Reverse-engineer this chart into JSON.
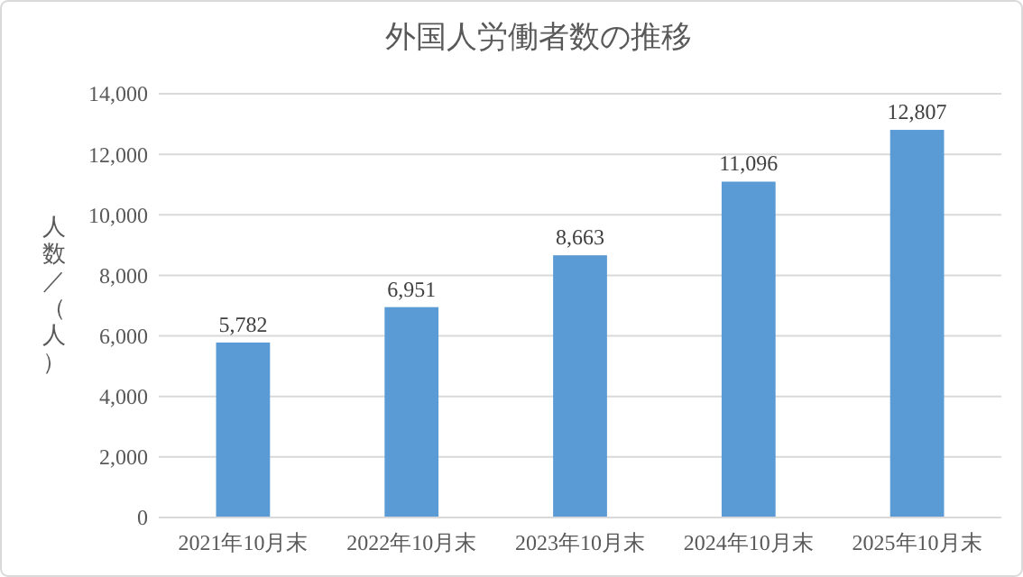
{
  "chart_data": {
    "type": "bar",
    "title": "外国人労働者数の推移",
    "ylabel": "人数／（人）",
    "categories": [
      "2021年10月末",
      "2022年10月末",
      "2023年10月末",
      "2024年10月末",
      "2025年10月末"
    ],
    "values": [
      5782,
      6951,
      8663,
      11096,
      12807
    ],
    "color": "#5b9bd5",
    "ylim": [
      0,
      14000
    ],
    "yticks": [
      {
        "value": 0,
        "label": "0"
      },
      {
        "value": 2000,
        "label": "2,000"
      },
      {
        "value": 4000,
        "label": "4,000"
      },
      {
        "value": 6000,
        "label": "6,000"
      },
      {
        "value": 8000,
        "label": "8,000"
      },
      {
        "value": 10000,
        "label": "10,000"
      },
      {
        "value": 12000,
        "label": "12,000"
      },
      {
        "value": 14000,
        "label": "14,000"
      }
    ],
    "value_labels": [
      "5,782",
      "6,951",
      "8,663",
      "11,096",
      "12,807"
    ],
    "grid": "y"
  }
}
